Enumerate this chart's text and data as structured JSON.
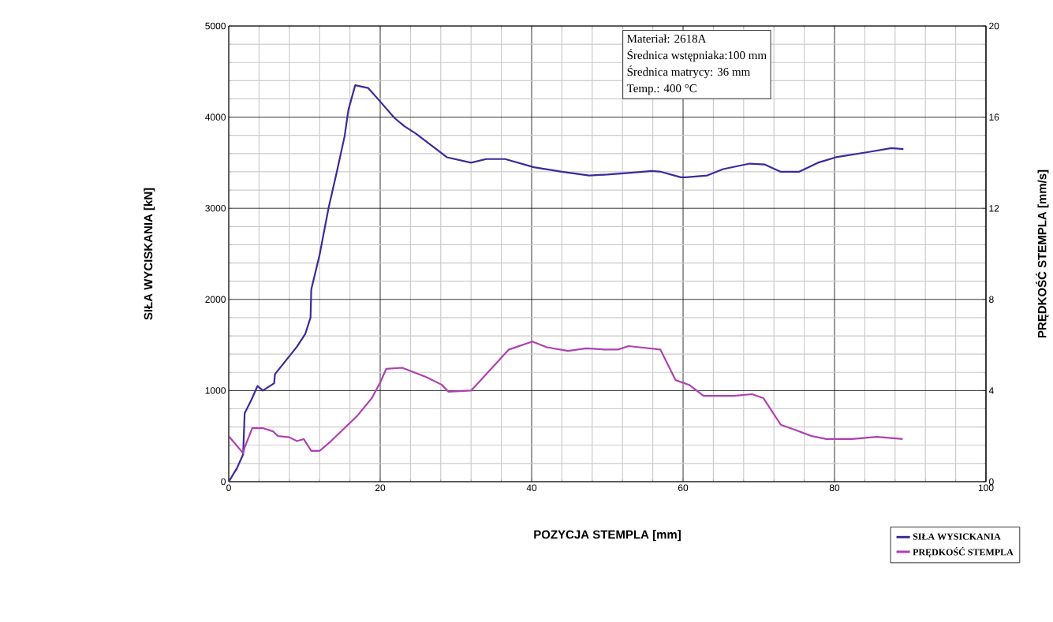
{
  "chart_data": {
    "type": "line",
    "xlabel": "POZYCJA STEMPLA [mm]",
    "ylabel": "SIŁA WYCISKANIA [kN]",
    "y2label": "PRĘDKOŚĆ STEMPLA [mm/s]",
    "annotations": [
      "Materiał: 2618A",
      "Średnica wstępniaka:100 mm",
      "Średnica matrycy: 36 mm",
      "Temp.: 400 °C"
    ],
    "xlim": [
      0,
      100
    ],
    "xticks": [
      0,
      20,
      40,
      60,
      80,
      100
    ],
    "ylim": [
      0,
      5000
    ],
    "yticks": [
      0,
      1000,
      2000,
      3000,
      4000,
      5000
    ],
    "y2lim": [
      0,
      20
    ],
    "y2ticks": [
      0,
      4,
      8,
      12,
      16,
      20
    ],
    "grid": true,
    "legend": "bottom right",
    "series": [
      {
        "name": "SIŁA WYSICKANIA",
        "color": "#3a2a9c",
        "x": [
          0,
          1.1,
          1.9,
          2.1,
          3,
          3.8,
          4.5,
          6,
          6.1,
          9,
          10.1,
          10.8,
          10.9,
          12,
          13.2,
          14.3,
          15.3,
          15.8,
          16.7,
          18.4,
          19.8,
          21.9,
          23.2,
          24.7,
          28.8,
          32,
          34,
          36.5,
          40.3,
          44,
          47.6,
          50,
          53.1,
          55.9,
          57.1,
          59.7,
          60.4,
          63.2,
          65.3,
          68.8,
          70.8,
          72.9,
          75.3,
          77.8,
          80.2,
          84.7,
          87.5,
          89.1
        ],
        "values": [
          0,
          150,
          300,
          750,
          900,
          1050,
          1000,
          1080,
          1180,
          1480,
          1620,
          1800,
          2110,
          2490,
          3010,
          3410,
          3790,
          4080,
          4350,
          4320,
          4190,
          3990,
          3900,
          3820,
          3560,
          3500,
          3540,
          3540,
          3450,
          3400,
          3360,
          3370,
          3390,
          3410,
          3400,
          3340,
          3340,
          3360,
          3430,
          3490,
          3480,
          3400,
          3400,
          3500,
          3560,
          3620,
          3660,
          3650
        ]
      },
      {
        "name": "PRĘDKOŚĆ STEMPLA",
        "color": "#b040b0",
        "axis": "y2",
        "x": [
          0,
          1.9,
          2.1,
          3.1,
          4.5,
          5.9,
          6.5,
          8,
          9,
          9.9,
          10.9,
          12,
          13.5,
          17,
          18.9,
          20,
          20.8,
          22.9,
          26,
          28.1,
          29,
          32,
          33.3,
          37,
          40.1,
          42,
          44.8,
          47.2,
          49.7,
          51.4,
          52.8,
          54.2,
          57,
          59,
          60.8,
          62.7,
          66.7,
          69.1,
          70.6,
          72.9,
          75,
          77,
          78.9,
          82.3,
          85.6,
          89
        ],
        "values": [
          2.0,
          1.25,
          1.5,
          2.35,
          2.35,
          2.2,
          2.0,
          1.95,
          1.78,
          1.87,
          1.35,
          1.35,
          1.78,
          2.9,
          3.67,
          4.36,
          4.95,
          5.0,
          4.6,
          4.26,
          3.95,
          4.0,
          4.46,
          5.8,
          6.15,
          5.9,
          5.74,
          5.85,
          5.8,
          5.8,
          5.95,
          5.9,
          5.8,
          4.46,
          4.25,
          3.77,
          3.77,
          3.84,
          3.67,
          2.5,
          2.25,
          2.0,
          1.87,
          1.87,
          1.97,
          1.87
        ]
      }
    ]
  }
}
